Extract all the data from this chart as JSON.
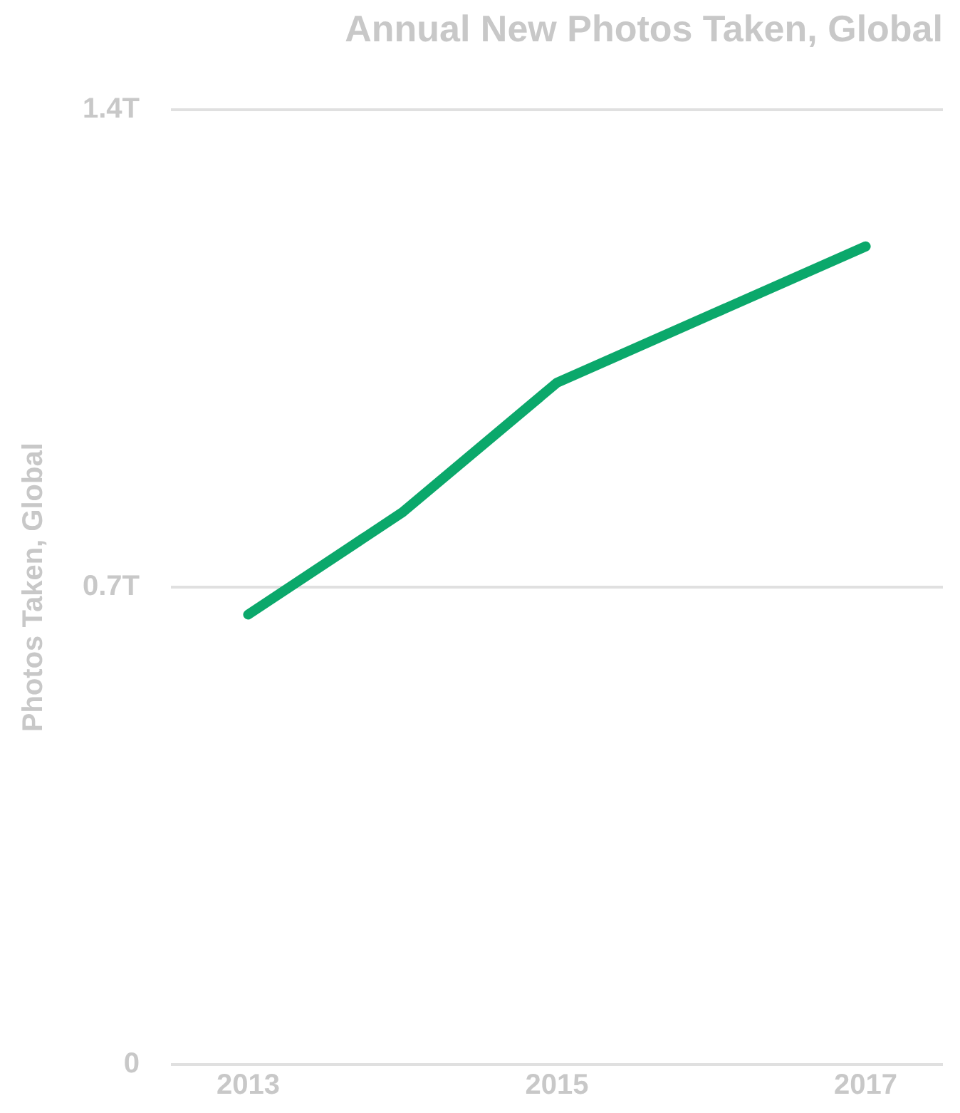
{
  "chart_data": {
    "type": "line",
    "title": "Annual New Photos Taken, Global",
    "ylabel": "Photos Taken, Global",
    "x": [
      2013,
      2014,
      2015,
      2016,
      2017
    ],
    "series": [
      {
        "color": "#0ba86b",
        "values": [
          0.66,
          0.81,
          1.0,
          1.1,
          1.2
        ]
      }
    ],
    "xlim": [
      2012.5,
      2017.5
    ],
    "xticks": [
      2013,
      2015,
      2017
    ],
    "ylim": [
      0,
      1.4
    ],
    "yticks": [
      {
        "value": 0,
        "label": "0"
      },
      {
        "value": 0.7,
        "label": "0.7T"
      },
      {
        "value": 1.4,
        "label": "1.4T"
      }
    ],
    "grid": "y",
    "legend": false,
    "marker": "none",
    "line_style": "solid"
  }
}
